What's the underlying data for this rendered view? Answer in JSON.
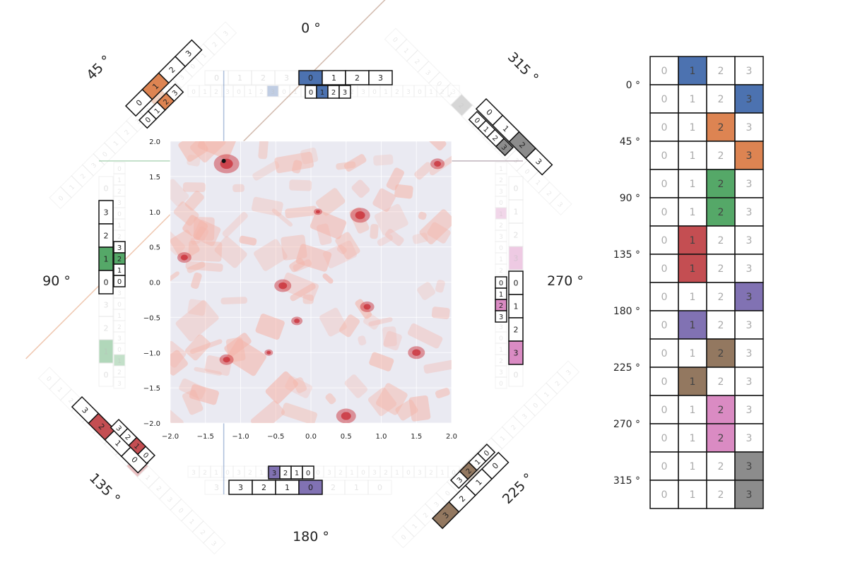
{
  "colors": {
    "blue": "#4c72b0",
    "orange": "#dd8452",
    "green": "#55a868",
    "red": "#c44e52",
    "purple": "#8172b3",
    "brown": "#937860",
    "pink": "#da8bc3",
    "gray": "#8c8c8c",
    "heat_low": "#eaeaf2",
    "heat_mid": "#f4b4a8",
    "heat_high": "#c8232c"
  },
  "angle_labels": [
    "0 °",
    "45 °",
    "90 °",
    "135 °",
    "180 °",
    "225 °",
    "270 °",
    "315 °"
  ],
  "plot": {
    "xlim": [
      -2.0,
      2.0
    ],
    "ylim": [
      -2.0,
      2.0
    ],
    "xticks": [
      "−2.0",
      "−1.5",
      "−1.0",
      "−0.5",
      "0.0",
      "0.5",
      "1.0",
      "1.5",
      "2.0"
    ],
    "yticks": [
      "2.0",
      "1.5",
      "1.0",
      "0.5",
      "0.0",
      "−0.5",
      "−1.0",
      "−1.5",
      "−2.0"
    ],
    "highlight_point": [
      -1.24,
      1.72
    ]
  },
  "top_strips": {
    "coarse": [
      "0",
      "1",
      "2",
      "3",
      "0",
      "1",
      "2",
      "3"
    ],
    "coarse_active": 4,
    "fine": [
      "0",
      "1",
      "2",
      "3",
      "0",
      "1",
      "2",
      "3",
      "0",
      "1",
      "2",
      "3",
      "0",
      "1",
      "2",
      "3"
    ],
    "fine_active": 9
  },
  "bottom_strips": {
    "fine": [
      "3",
      "2",
      "1",
      "0",
      "3",
      "2",
      "1",
      "0",
      "3",
      "2",
      "1",
      "0",
      "3",
      "2",
      "1",
      "0"
    ],
    "fine_active": 6,
    "coarse": [
      "3",
      "2",
      "1",
      "0",
      "3",
      "2",
      "1",
      "0"
    ],
    "coarse_active": 3
  },
  "left_strips": {
    "coarse": [
      "3",
      "2",
      "1",
      "0"
    ],
    "coarse_active": 2,
    "fine": [
      "3",
      "2",
      "1",
      "0"
    ],
    "fine_active": 1
  },
  "right_strips": {
    "fine": [
      "0",
      "1",
      "2",
      "3"
    ],
    "fine_active": 2,
    "coarse": [
      "0",
      "1",
      "2",
      "3"
    ],
    "coarse_active": 3
  },
  "diag_strips": {
    "nw_coarse": [
      "0",
      "1",
      "2",
      "3"
    ],
    "nw_coarse_active": 1,
    "nw_color": "orange",
    "nw_fine": [
      "0",
      "1",
      "2",
      "3"
    ],
    "nw_fine_active": 2,
    "ne_coarse": [
      "0",
      "1",
      "2",
      "3"
    ],
    "ne_coarse_active": 2,
    "ne_color": "gray",
    "ne_fine": [
      "0",
      "1",
      "2",
      "3"
    ],
    "ne_fine_active": 3,
    "sw_coarse": [
      "3",
      "2",
      "1",
      "0"
    ],
    "sw_coarse_active": 1,
    "sw_color": "red",
    "sw_fine": [
      "3",
      "2",
      "1",
      "0"
    ],
    "sw_fine_active": 2,
    "se_coarse": [
      "3",
      "2",
      "1",
      "0"
    ],
    "se_coarse_active": 0,
    "se_color": "brown",
    "se_fine": [
      "3",
      "2",
      "1",
      "0"
    ],
    "se_fine_active": 1
  },
  "right_table": {
    "header": [
      "0",
      "1",
      "2",
      "3"
    ],
    "rows": [
      {
        "angle": "0 °",
        "active": 1,
        "color": "blue"
      },
      {
        "angle": "",
        "active": 3,
        "color": "blue"
      },
      {
        "angle": "45 °",
        "active": 2,
        "color": "orange"
      },
      {
        "angle": "",
        "active": 3,
        "color": "orange"
      },
      {
        "angle": "90 °",
        "active": 2,
        "color": "green"
      },
      {
        "angle": "",
        "active": 2,
        "color": "green"
      },
      {
        "angle": "135 °",
        "active": 1,
        "color": "red"
      },
      {
        "angle": "",
        "active": 1,
        "color": "red"
      },
      {
        "angle": "180 °",
        "active": 3,
        "color": "purple"
      },
      {
        "angle": "",
        "active": 1,
        "color": "purple"
      },
      {
        "angle": "225 °",
        "active": 2,
        "color": "brown"
      },
      {
        "angle": "",
        "active": 1,
        "color": "brown"
      },
      {
        "angle": "270 °",
        "active": 2,
        "color": "pink"
      },
      {
        "angle": "",
        "active": 2,
        "color": "pink"
      },
      {
        "angle": "315 °",
        "active": 3,
        "color": "gray"
      },
      {
        "angle": "",
        "active": 3,
        "color": "gray"
      }
    ]
  }
}
